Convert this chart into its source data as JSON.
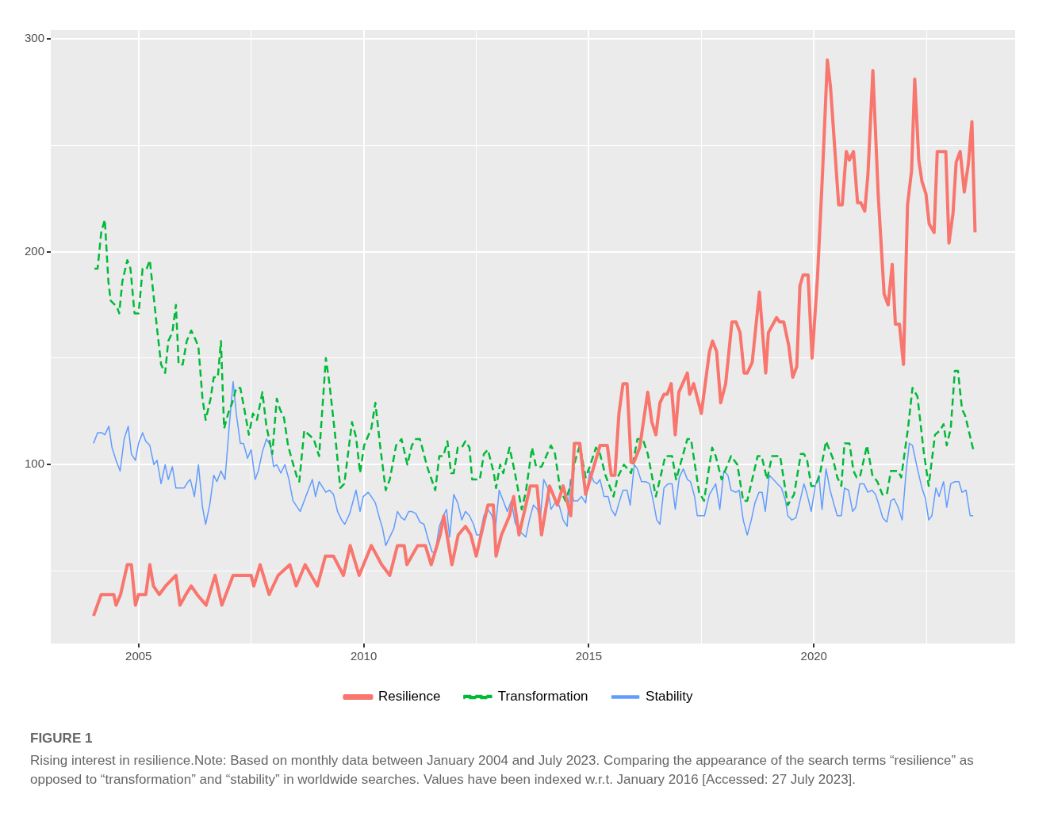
{
  "chart_data": {
    "type": "line",
    "xlim": [
      2003.05,
      2024.47
    ],
    "ylim": [
      16,
      304
    ],
    "xticks": [
      2005,
      {
        "value": 2007.5,
        "label": null
      },
      2010,
      {
        "value": 2012.5,
        "label": null
      },
      2015,
      {
        "value": 2017.5,
        "label": null
      },
      2020,
      {
        "value": 2022.5,
        "label": null
      }
    ],
    "yticks": [
      {
        "value": 50,
        "label": null
      },
      100,
      {
        "value": 150,
        "label": null
      },
      200,
      {
        "value": 250,
        "label": null
      },
      300
    ],
    "grid": true,
    "legend": "bottom",
    "marker": "none",
    "annotations": [
      "FIGURE 1",
      "Rising interest in resilience.Note: Based on monthly data between January 2004 and July 2023. Comparing the appearance of the search terms “resilience” as opposed to “transformation” and “stability” in worldwide searches. Values have been indexed w.r.t. January 2016 [Accessed: 27 July 2023]."
    ],
    "series": [
      {
        "name": "Resilience",
        "color": "#f8766d",
        "line_style": "solid",
        "x": [
          2004.0,
          2004.17,
          2004.45,
          2004.5,
          2004.6,
          2004.75,
          2004.84,
          2004.93,
          2005.0,
          2005.16,
          2005.25,
          2005.33,
          2005.46,
          2005.6,
          2005.83,
          2005.92,
          2006.05,
          2006.17,
          2006.3,
          2006.5,
          2006.7,
          2006.85,
          2007.1,
          2007.5,
          2007.56,
          2007.7,
          2007.9,
          2008.1,
          2008.36,
          2008.5,
          2008.7,
          2008.97,
          2009.15,
          2009.33,
          2009.55,
          2009.7,
          2009.9,
          2010.17,
          2010.4,
          2010.58,
          2010.75,
          2010.9,
          2010.96,
          2011.2,
          2011.37,
          2011.5,
          2011.7,
          2011.78,
          2011.85,
          2011.96,
          2012.1,
          2012.26,
          2012.38,
          2012.5,
          2012.76,
          2012.88,
          2012.94,
          2013.06,
          2013.24,
          2013.33,
          2013.45,
          2013.7,
          2013.85,
          2013.95,
          2014.13,
          2014.3,
          2014.43,
          2014.6,
          2014.68,
          2014.8,
          2014.93,
          2015.25,
          2015.41,
          2015.5,
          2015.58,
          2015.67,
          2015.76,
          2015.85,
          2015.94,
          2016.0,
          2016.13,
          2016.31,
          2016.4,
          2016.49,
          2016.58,
          2016.67,
          2016.74,
          2016.83,
          2016.92,
          2017.0,
          2017.19,
          2017.24,
          2017.33,
          2017.5,
          2017.68,
          2017.75,
          2017.84,
          2017.93,
          2018.04,
          2018.18,
          2018.27,
          2018.36,
          2018.45,
          2018.52,
          2018.63,
          2018.79,
          2018.93,
          2018.99,
          2019.17,
          2019.24,
          2019.33,
          2019.44,
          2019.53,
          2019.62,
          2019.69,
          2019.76,
          2019.87,
          2019.96,
          2020.08,
          2020.19,
          2020.3,
          2020.37,
          2020.55,
          2020.63,
          2020.72,
          2020.79,
          2020.88,
          2020.97,
          2021.04,
          2021.13,
          2021.2,
          2021.31,
          2021.43,
          2021.56,
          2021.65,
          2021.74,
          2021.81,
          2021.9,
          2021.99,
          2022.08,
          2022.17,
          2022.24,
          2022.33,
          2022.4,
          2022.49,
          2022.56,
          2022.67,
          2022.74,
          2022.93,
          2023.0,
          2023.09,
          2023.16,
          2023.25,
          2023.34,
          2023.43,
          2023.51,
          2023.58
        ],
        "values": [
          29,
          39,
          39,
          34,
          39,
          53,
          53,
          34,
          39,
          39,
          53,
          43,
          39,
          43,
          48,
          34,
          39,
          43,
          39,
          34,
          48,
          34,
          48,
          48,
          43,
          53,
          39,
          48,
          53,
          43,
          53,
          43,
          57,
          57,
          48,
          62,
          48,
          62,
          53,
          48,
          62,
          62,
          53,
          62,
          62,
          53,
          67,
          76,
          67,
          53,
          67,
          71,
          67,
          57,
          81,
          81,
          57,
          67,
          76,
          85,
          67,
          90,
          90,
          67,
          90,
          81,
          90,
          76,
          110,
          110,
          86,
          109,
          109,
          95,
          95,
          124,
          138,
          138,
          101,
          101,
          108,
          134,
          120,
          114,
          129,
          133,
          133,
          138,
          114,
          134,
          143,
          133,
          138,
          124,
          153,
          158,
          153,
          129,
          138,
          167,
          167,
          162,
          143,
          143,
          148,
          181,
          143,
          162,
          169,
          167,
          167,
          156,
          141,
          146,
          184,
          189,
          189,
          150,
          188,
          236,
          290,
          277,
          222,
          222,
          247,
          243,
          247,
          223,
          223,
          219,
          236,
          285,
          226,
          180,
          175,
          194,
          166,
          166,
          147,
          222,
          238,
          281,
          243,
          233,
          227,
          213,
          209,
          247,
          247,
          204,
          218,
          242,
          247,
          228,
          241,
          261,
          209
        ]
      },
      {
        "name": "Transformation",
        "color": "#00ba38",
        "line_style": "dashed",
        "x": [
          2004.02,
          2004.09,
          2004.17,
          2004.25,
          2004.33,
          2004.38,
          2004.52,
          2004.57,
          2004.64,
          2004.75,
          2004.82,
          2004.91,
          2005.0,
          2005.09,
          2005.18,
          2005.25,
          2005.32,
          2005.41,
          2005.5,
          2005.59,
          2005.66,
          2005.75,
          2005.83,
          2005.89,
          2005.98,
          2006.07,
          2006.17,
          2006.28,
          2006.33,
          2006.42,
          2006.49,
          2006.6,
          2006.67,
          2006.76,
          2006.83,
          2006.9,
          2006.99,
          2007.08,
          2007.17,
          2007.26,
          2007.35,
          2007.45,
          2007.54,
          2007.63,
          2007.75,
          2007.84,
          2007.97,
          2008.07,
          2008.14,
          2008.23,
          2008.32,
          2008.41,
          2008.52,
          2008.57,
          2008.68,
          2008.89,
          2009.01,
          2009.16,
          2009.24,
          2009.37,
          2009.48,
          2009.57,
          2009.74,
          2009.83,
          2009.92,
          2010.01,
          2010.17,
          2010.26,
          2010.37,
          2010.49,
          2010.58,
          2010.72,
          2010.84,
          2010.97,
          2011.07,
          2011.16,
          2011.25,
          2011.41,
          2011.59,
          2011.68,
          2011.77,
          2011.86,
          2011.94,
          2012.0,
          2012.09,
          2012.18,
          2012.26,
          2012.35,
          2012.41,
          2012.58,
          2012.67,
          2012.76,
          2012.89,
          2012.94,
          2013.03,
          2013.1,
          2013.24,
          2013.36,
          2013.51,
          2013.6,
          2013.74,
          2013.83,
          2013.95,
          2014.16,
          2014.25,
          2014.36,
          2014.48,
          2014.61,
          2014.7,
          2014.8,
          2014.93,
          2015.02,
          2015.16,
          2015.25,
          2015.37,
          2015.55,
          2015.64,
          2015.78,
          2015.94,
          2016.08,
          2016.2,
          2016.31,
          2016.49,
          2016.7,
          2016.85,
          2016.94,
          2017.19,
          2017.27,
          2017.45,
          2017.56,
          2017.74,
          2017.82,
          2017.95,
          2018.16,
          2018.3,
          2018.43,
          2018.52,
          2018.75,
          2018.84,
          2018.96,
          2019.07,
          2019.25,
          2019.42,
          2019.56,
          2019.71,
          2019.78,
          2019.85,
          2019.94,
          2020.03,
          2020.13,
          2020.27,
          2020.42,
          2020.52,
          2020.61,
          2020.68,
          2020.79,
          2020.88,
          2020.95,
          2021.02,
          2021.18,
          2021.3,
          2021.41,
          2021.52,
          2021.62,
          2021.71,
          2021.87,
          2021.94,
          2022.09,
          2022.19,
          2022.3,
          2022.44,
          2022.55,
          2022.69,
          2022.8,
          2022.88,
          2022.95,
          2023.04,
          2023.13,
          2023.2,
          2023.29,
          2023.36,
          2023.54
        ],
        "values": [
          192,
          192,
          209,
          215,
          186,
          177,
          174,
          171,
          186,
          196,
          192,
          171,
          171,
          192,
          192,
          196,
          182,
          164,
          147,
          143,
          158,
          162,
          175,
          147,
          147,
          158,
          163,
          158,
          155,
          131,
          121,
          131,
          141,
          141,
          158,
          117,
          124,
          129,
          136,
          136,
          126,
          114,
          124,
          121,
          134,
          118,
          105,
          131,
          126,
          122,
          109,
          102,
          94,
          92,
          116,
          112,
          104,
          150,
          138,
          113,
          89,
          91,
          120,
          113,
          96,
          109,
          117,
          129,
          108,
          88,
          93,
          109,
          112,
          100,
          109,
          112,
          112,
          99,
          88,
          104,
          104,
          111,
          96,
          96,
          108,
          108,
          111,
          108,
          93,
          93,
          105,
          107,
          96,
          89,
          100,
          96,
          108,
          96,
          79,
          87,
          108,
          99,
          99,
          109,
          105,
          89,
          83,
          91,
          102,
          109,
          94,
          99,
          108,
          105,
          95,
          85,
          94,
          100,
          96,
          112,
          112,
          105,
          85,
          104,
          104,
          93,
          112,
          112,
          87,
          83,
          108,
          104,
          93,
          104,
          100,
          83,
          83,
          104,
          104,
          93,
          104,
          104,
          81,
          86,
          105,
          105,
          102,
          90,
          90,
          95,
          111,
          103,
          94,
          90,
          110,
          110,
          97,
          94,
          94,
          109,
          95,
          92,
          86,
          86,
          97,
          97,
          94,
          117,
          136,
          132,
          106,
          90,
          114,
          116,
          119,
          109,
          117,
          144,
          144,
          126,
          123,
          107
        ]
      },
      {
        "name": "Stability",
        "color": "#619cff",
        "line_style": "solid",
        "x": [
          2004.0,
          2004.09,
          2004.18,
          2004.25,
          2004.34,
          2004.41,
          2004.5,
          2004.59,
          2004.68,
          2004.77,
          2004.84,
          2004.93,
          2005.0,
          2005.09,
          2005.16,
          2005.25,
          2005.34,
          2005.41,
          2005.5,
          2005.59,
          2005.66,
          2005.75,
          2005.83,
          2006.01,
          2006.1,
          2006.15,
          2006.24,
          2006.33,
          2006.42,
          2006.49,
          2006.58,
          2006.67,
          2006.74,
          2006.83,
          2006.92,
          2007.01,
          2007.1,
          2007.17,
          2007.26,
          2007.33,
          2007.42,
          2007.5,
          2007.59,
          2007.66,
          2007.75,
          2007.84,
          2007.93,
          2008.0,
          2008.07,
          2008.16,
          2008.25,
          2008.34,
          2008.43,
          2008.59,
          2008.75,
          2008.86,
          2008.93,
          2009.01,
          2009.16,
          2009.24,
          2009.33,
          2009.42,
          2009.51,
          2009.58,
          2009.69,
          2009.83,
          2009.92,
          2009.99,
          2010.1,
          2010.17,
          2010.26,
          2010.35,
          2010.42,
          2010.49,
          2010.67,
          2010.75,
          2010.84,
          2010.91,
          2011.0,
          2011.07,
          2011.16,
          2011.25,
          2011.34,
          2011.43,
          2011.52,
          2011.59,
          2011.68,
          2011.77,
          2011.84,
          2011.91,
          2012.0,
          2012.09,
          2012.18,
          2012.26,
          2012.35,
          2012.44,
          2012.51,
          2012.58,
          2012.67,
          2012.76,
          2012.85,
          2012.92,
          2013.01,
          2013.1,
          2013.19,
          2013.28,
          2013.36,
          2013.45,
          2013.6,
          2013.68,
          2013.77,
          2013.86,
          2013.92,
          2014.0,
          2014.09,
          2014.16,
          2014.25,
          2014.34,
          2014.43,
          2014.52,
          2014.59,
          2014.66,
          2014.75,
          2014.84,
          2014.93,
          2015.02,
          2015.11,
          2015.18,
          2015.25,
          2015.34,
          2015.43,
          2015.5,
          2015.59,
          2015.67,
          2015.76,
          2015.85,
          2015.92,
          2016.01,
          2016.08,
          2016.17,
          2016.26,
          2016.35,
          2016.44,
          2016.51,
          2016.58,
          2016.67,
          2016.76,
          2016.85,
          2016.92,
          2017.01,
          2017.1,
          2017.19,
          2017.26,
          2017.35,
          2017.41,
          2017.57,
          2017.68,
          2017.82,
          2017.91,
          2018.0,
          2018.09,
          2018.16,
          2018.27,
          2018.34,
          2018.43,
          2018.52,
          2018.61,
          2018.69,
          2018.78,
          2018.85,
          2018.92,
          2019.01,
          2019.1,
          2019.19,
          2019.28,
          2019.37,
          2019.42,
          2019.51,
          2019.6,
          2019.67,
          2019.78,
          2019.85,
          2019.94,
          2020.03,
          2020.11,
          2020.18,
          2020.27,
          2020.36,
          2020.45,
          2020.52,
          2020.61,
          2020.68,
          2020.77,
          2020.86,
          2020.93,
          2021.02,
          2021.11,
          2021.2,
          2021.29,
          2021.37,
          2021.46,
          2021.53,
          2021.62,
          2021.71,
          2021.78,
          2021.87,
          2021.96,
          2022.05,
          2022.12,
          2022.19,
          2022.3,
          2022.4,
          2022.48,
          2022.55,
          2022.62,
          2022.71,
          2022.78,
          2022.88,
          2022.95,
          2023.04,
          2023.13,
          2023.22,
          2023.29,
          2023.38,
          2023.47,
          2023.54
        ],
        "values": [
          110,
          115,
          115,
          114,
          118,
          108,
          102,
          97,
          112,
          118,
          105,
          102,
          110,
          115,
          111,
          109,
          100,
          102,
          91,
          100,
          93,
          99,
          89,
          89,
          92,
          93,
          85,
          100,
          80,
          72,
          81,
          95,
          92,
          97,
          93,
          117,
          139,
          124,
          110,
          110,
          103,
          107,
          93,
          97,
          106,
          112,
          109,
          99,
          100,
          96,
          100,
          93,
          83,
          78,
          87,
          93,
          85,
          92,
          87,
          88,
          86,
          78,
          74,
          72,
          77,
          88,
          78,
          85,
          87,
          85,
          82,
          75,
          70,
          62,
          70,
          78,
          75,
          74,
          78,
          78,
          77,
          73,
          72,
          65,
          59,
          59,
          71,
          76,
          79,
          66,
          86,
          82,
          74,
          78,
          76,
          72,
          67,
          67,
          76,
          79,
          76,
          69,
          88,
          83,
          78,
          83,
          73,
          69,
          66,
          74,
          81,
          79,
          74,
          93,
          89,
          79,
          82,
          81,
          74,
          71,
          93,
          83,
          83,
          85,
          82,
          97,
          92,
          91,
          93,
          85,
          85,
          79,
          76,
          82,
          88,
          88,
          81,
          100,
          98,
          92,
          92,
          91,
          82,
          74,
          72,
          89,
          91,
          91,
          79,
          94,
          98,
          93,
          92,
          85,
          76,
          76,
          86,
          91,
          79,
          97,
          95,
          88,
          87,
          88,
          74,
          67,
          74,
          82,
          87,
          87,
          78,
          95,
          93,
          91,
          89,
          83,
          76,
          74,
          75,
          81,
          91,
          86,
          78,
          90,
          95,
          79,
          98,
          88,
          81,
          76,
          76,
          89,
          88,
          78,
          80,
          91,
          91,
          87,
          88,
          86,
          80,
          75,
          73,
          83,
          84,
          80,
          74,
          97,
          110,
          109,
          98,
          89,
          84,
          74,
          76,
          89,
          85,
          92,
          80,
          91,
          92,
          92,
          87,
          88,
          76,
          76
        ]
      }
    ]
  }
}
